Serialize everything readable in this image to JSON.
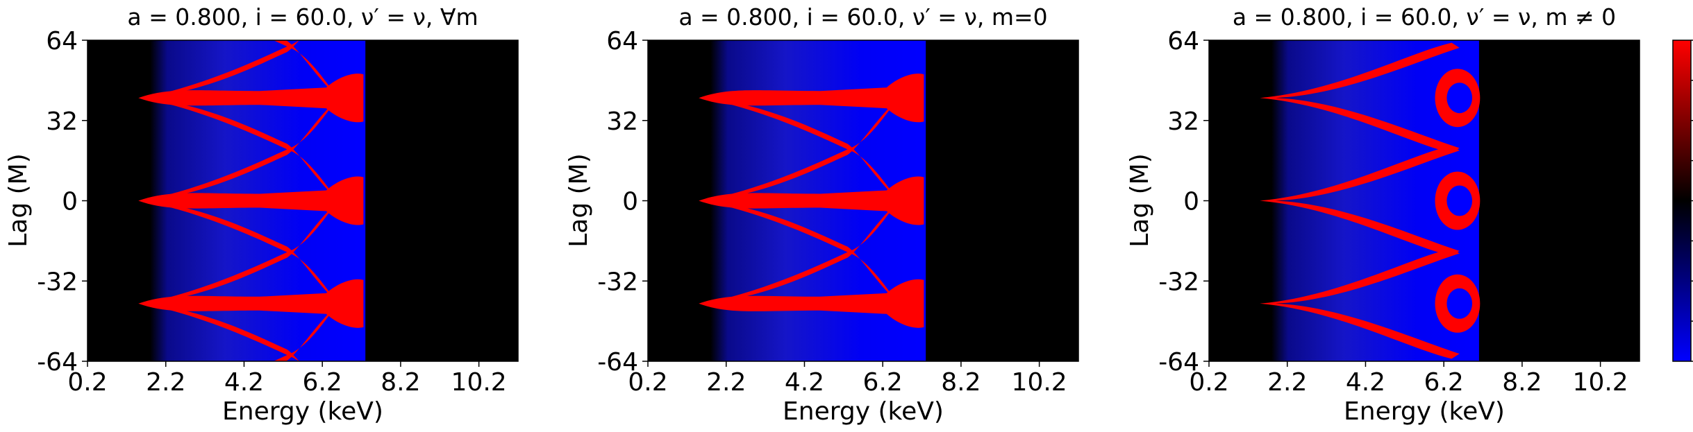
{
  "chart_data": [
    {
      "type": "heatmap",
      "title": "a = 0.800, i = 60.0, ν′ = ν, ∀m",
      "xlabel": "Energy (keV)",
      "ylabel": "Lag (M)",
      "xlim": [
        0.2,
        11.2
      ],
      "ylim": [
        -64,
        64
      ],
      "xticks": [
        "0.2",
        "2.2",
        "4.2",
        "6.2",
        "8.2",
        "10.2"
      ],
      "yticks": [
        "64",
        "32",
        "0",
        "-32",
        "-64"
      ],
      "emission_band_keV": [
        1.8,
        7.3
      ],
      "branch_merge_lags": [
        -20,
        20
      ],
      "variant": "all"
    },
    {
      "type": "heatmap",
      "title": "a = 0.800, i = 60.0, ν′ = ν, m=0",
      "xlabel": "Energy (keV)",
      "ylabel": "Lag (M)",
      "xlim": [
        0.2,
        11.2
      ],
      "ylim": [
        -64,
        64
      ],
      "xticks": [
        "0.2",
        "2.2",
        "4.2",
        "6.2",
        "8.2",
        "10.2"
      ],
      "yticks": [
        "64",
        "32",
        "0",
        "-32",
        "-64"
      ],
      "emission_band_keV": [
        1.8,
        7.3
      ],
      "branch_merge_lags": [
        -20,
        20
      ],
      "variant": "m0"
    },
    {
      "type": "heatmap",
      "title": "a = 0.800, i = 60.0, ν′ = ν, m ≠ 0",
      "xlabel": "Energy (keV)",
      "ylabel": "Lag (M)",
      "xlim": [
        0.2,
        11.2
      ],
      "ylim": [
        -64,
        64
      ],
      "xticks": [
        "0.2",
        "2.2",
        "4.2",
        "6.2",
        "8.2",
        "10.2"
      ],
      "yticks": [
        "64",
        "32",
        "0",
        "-32",
        "-64"
      ],
      "emission_band_keV": [
        1.8,
        7.1
      ],
      "branch_merge_lags": [
        -20,
        20
      ],
      "variant": "mn0"
    }
  ],
  "colorbar": {
    "colors": [
      "#0000ff",
      "#000000",
      "#ff0000"
    ],
    "orientation": "vertical",
    "tick_labels_visible": false
  }
}
